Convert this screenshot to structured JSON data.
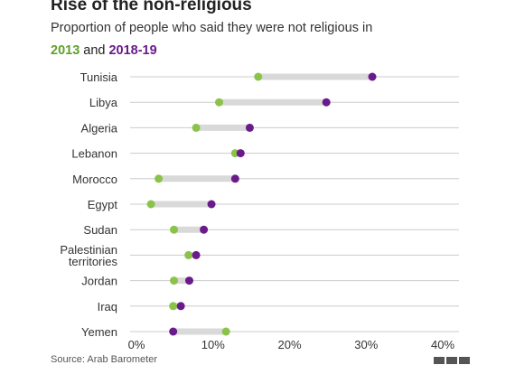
{
  "header": {
    "title": "Rise of the non-religious",
    "subtitle": "Proportion of people who said they were not religious in"
  },
  "legend": {
    "label_2013": "2013",
    "connector": "and",
    "label_2018": "2018-19"
  },
  "footer": {
    "source": "Source: Arab Barometer"
  },
  "colors": {
    "y2013": "#8bc34a",
    "y2018": "#6b1a8c",
    "connector": "#d9d9d9",
    "gridline": "#cccccc"
  },
  "chart_data": {
    "type": "dot",
    "title": "Rise of the non-religious",
    "subtitle": "Proportion of people who said they were not religious in",
    "categories": [
      "Tunisia",
      "Libya",
      "Algeria",
      "Lebanon",
      "Morocco",
      "Egypt",
      "Sudan",
      "Palestinian territories",
      "Jordan",
      "Iraq",
      "Yemen"
    ],
    "category_lines": [
      [
        "Tunisia"
      ],
      [
        "Libya"
      ],
      [
        "Algeria"
      ],
      [
        "Lebanon"
      ],
      [
        "Morocco"
      ],
      [
        "Egypt"
      ],
      [
        "Sudan"
      ],
      [
        "Palestinian",
        "territories"
      ],
      [
        "Jordan"
      ],
      [
        "Iraq"
      ],
      [
        "Yemen"
      ]
    ],
    "series": [
      {
        "name": "2013",
        "values": [
          15.9,
          10.8,
          7.8,
          12.9,
          2.9,
          1.9,
          4.9,
          6.8,
          4.9,
          4.8,
          11.7
        ]
      },
      {
        "name": "2018-19",
        "values": [
          30.8,
          24.8,
          14.8,
          13.6,
          12.9,
          9.8,
          8.8,
          7.8,
          6.9,
          5.8,
          4.8
        ]
      }
    ],
    "xlim": [
      0,
      40
    ],
    "xticks": [
      0,
      10,
      20,
      30,
      40
    ],
    "xtick_labels": [
      "0%",
      "10%",
      "20%",
      "30%",
      "40%"
    ],
    "grid": true,
    "legend_position": "top-left"
  }
}
